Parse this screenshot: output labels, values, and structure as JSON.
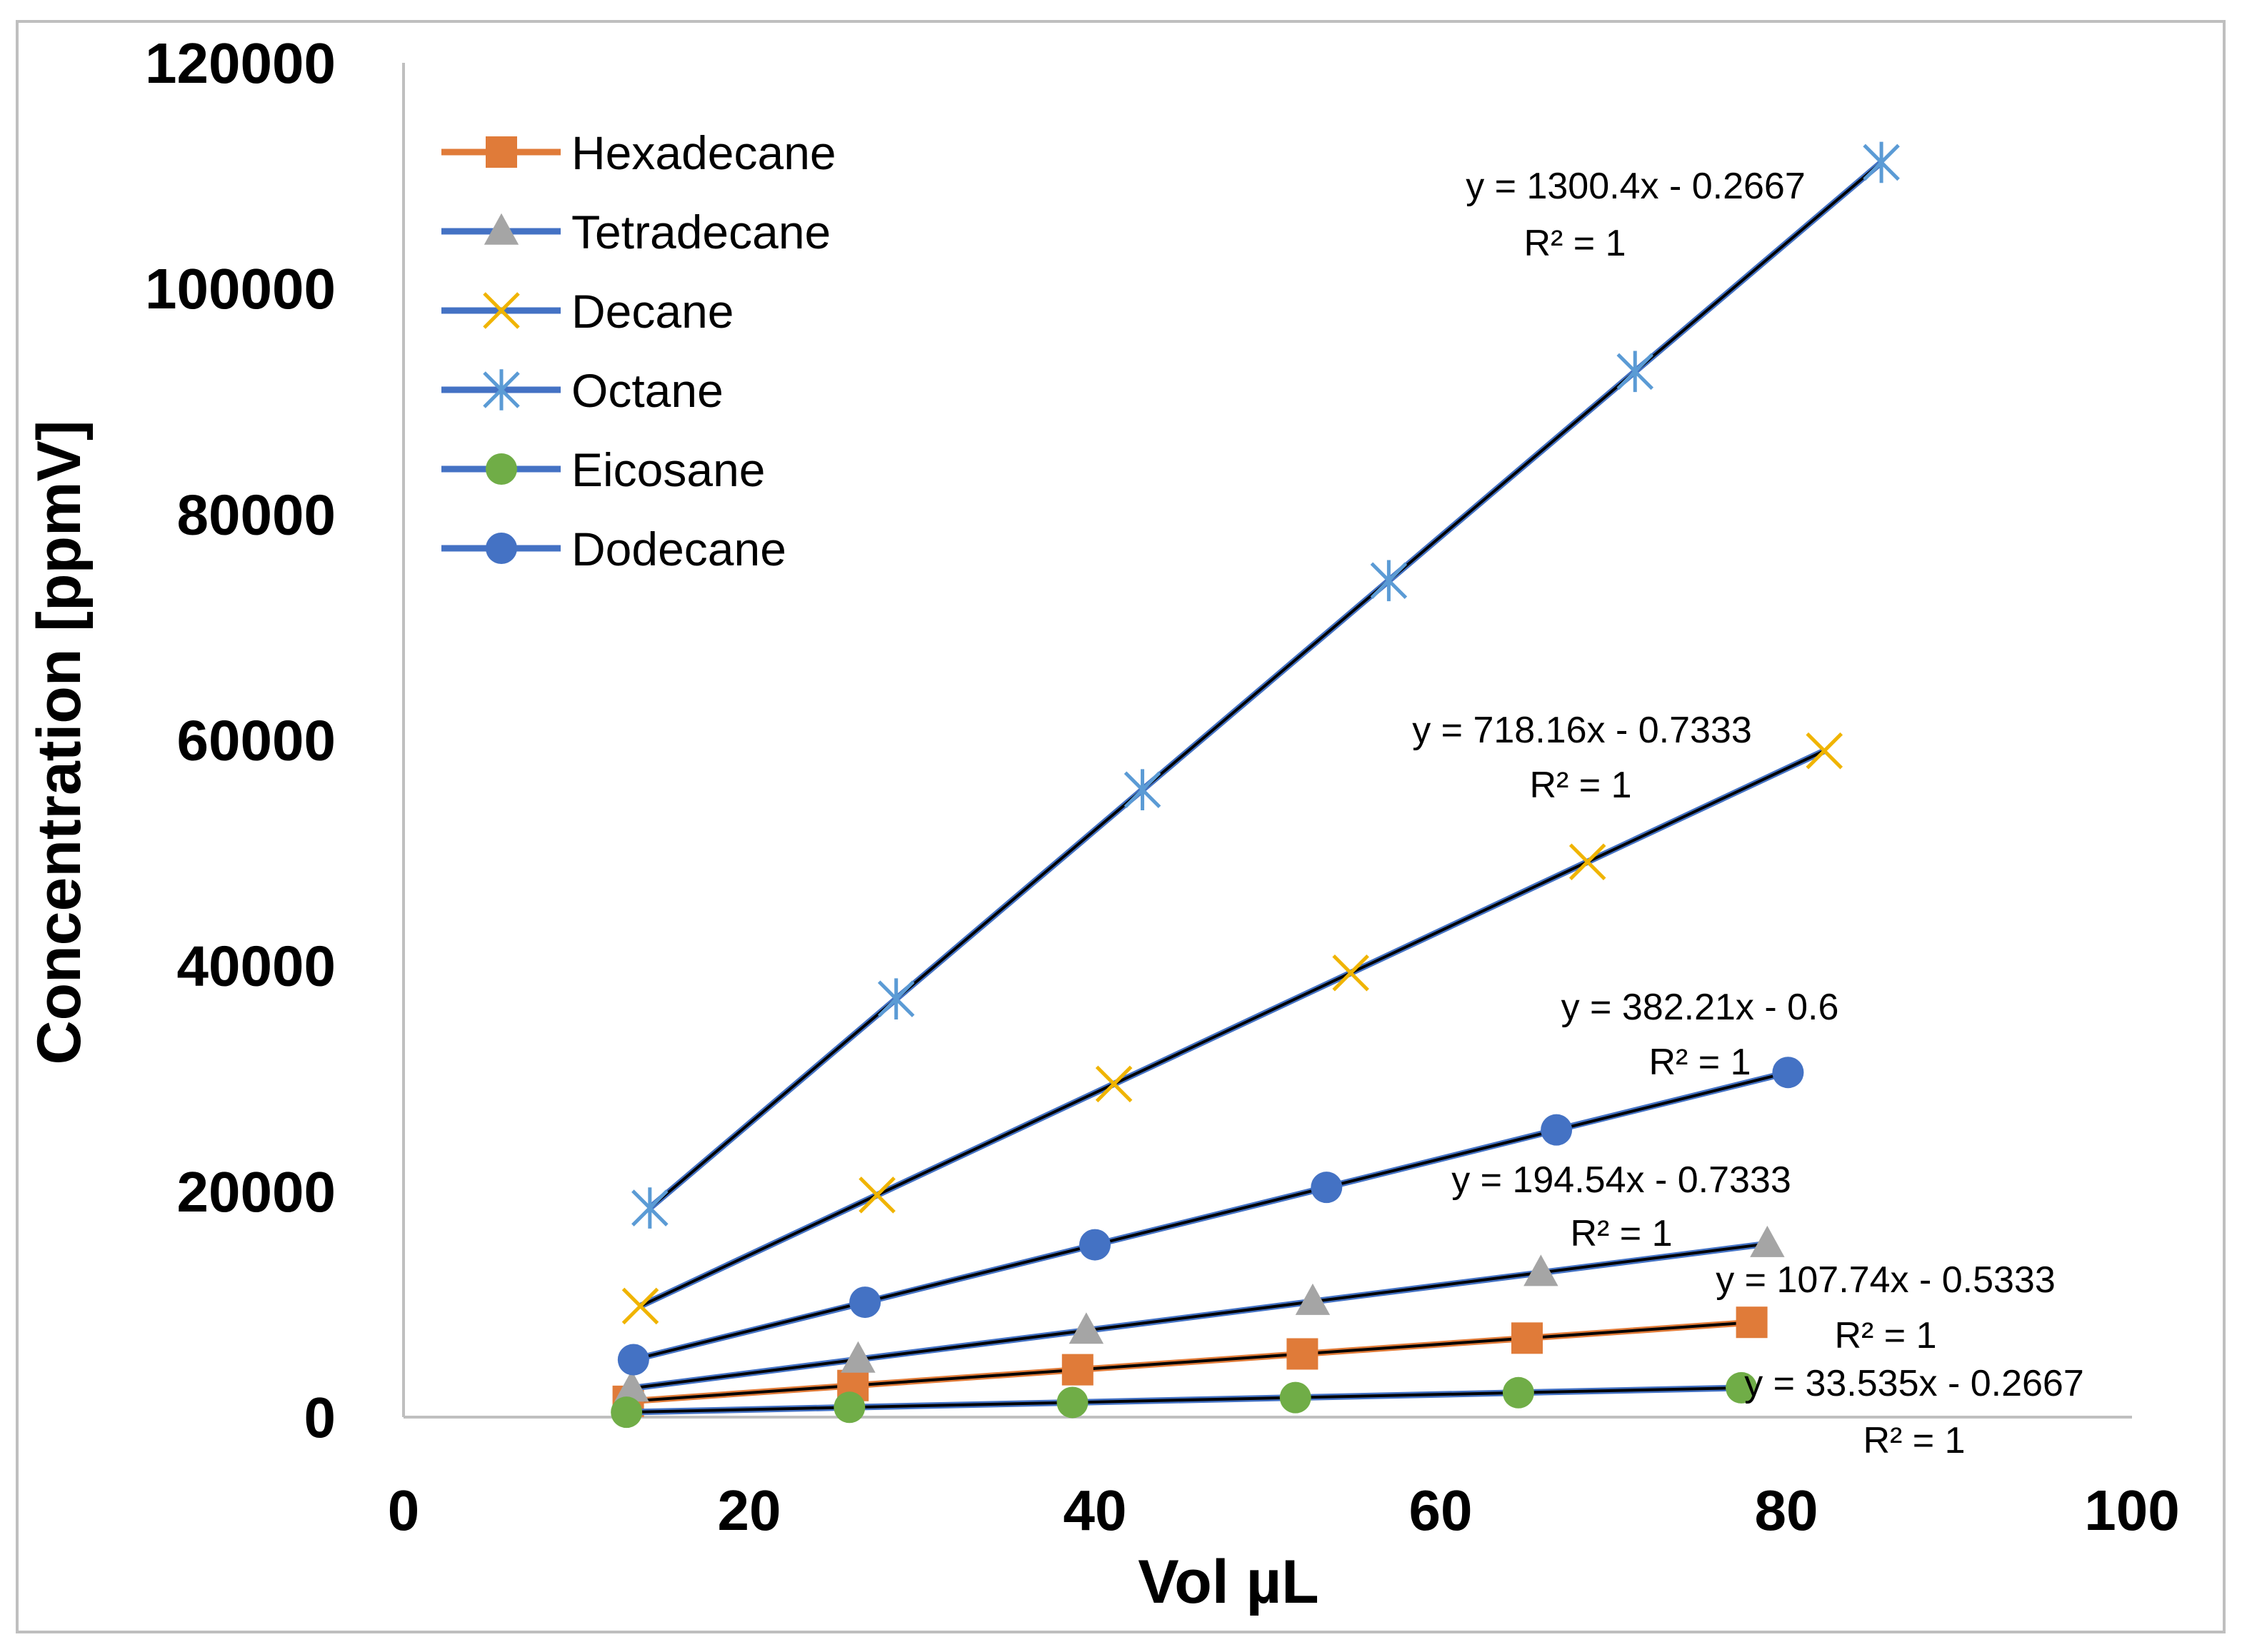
{
  "chart_data": {
    "type": "scatter",
    "title": "",
    "xlabel": "Vol µL",
    "ylabel": "Concentration [ppmV]",
    "xlim": [
      0,
      100
    ],
    "ylim": [
      0,
      120000
    ],
    "xticks": [
      "0",
      "20",
      "40",
      "60",
      "80",
      "100"
    ],
    "yticks": [
      "0",
      "20000",
      "40000",
      "60000",
      "80000",
      "100000",
      "120000"
    ],
    "grid": false,
    "legend_position": "top-left",
    "colors": {
      "Hexadecane": "#E07B39",
      "Tetradecane": "#A5A5A5",
      "Decane": "#F0B400",
      "Octane": "#5B9BD5",
      "Eicosane": "#70AD47",
      "Dodecane": "#4472C4",
      "trend_line": "#000000",
      "series_line": "#4472C4",
      "hexadecane_line": "#E07B39"
    },
    "series": [
      {
        "name": "Hexadecane",
        "marker": "square",
        "x": [
          13,
          26,
          39,
          52,
          65,
          78
        ],
        "y": [
          1400,
          2800,
          4200,
          5600,
          7000,
          8400
        ],
        "equation": "y = 107.74x - 0.5333",
        "r2": "R² = 1"
      },
      {
        "name": "Tetradecane",
        "marker": "triangle",
        "x": [
          13.2,
          26.3,
          39.5,
          52.6,
          65.8,
          78.9
        ],
        "y": [
          2560,
          5120,
          7680,
          10240,
          12800,
          15360
        ],
        "equation": "y = 194.54x - 0.7333",
        "r2": "R² = 1"
      },
      {
        "name": "Decane",
        "marker": "x",
        "x": [
          13.7,
          27.4,
          41.1,
          54.8,
          68.5,
          82.2
        ],
        "y": [
          9840,
          19680,
          29520,
          39360,
          49200,
          59040
        ],
        "equation": "y = 718.16x - 0.7333",
        "r2": "R² = 1"
      },
      {
        "name": "Octane",
        "marker": "asterisk",
        "x": [
          14.25,
          28.5,
          42.75,
          57,
          71.25,
          85.5
        ],
        "y": [
          18530,
          37060,
          55590,
          74120,
          92650,
          111180
        ],
        "equation": "y = 1300.4x - 0.2667",
        "r2": "R² = 1"
      },
      {
        "name": "Eicosane",
        "marker": "circle",
        "x": [
          12.9,
          25.8,
          38.7,
          51.6,
          64.5,
          77.4
        ],
        "y": [
          433,
          866,
          1299,
          1732,
          2165,
          2598
        ],
        "equation": "y = 33.535x - 0.2667",
        "r2": "R² = 1"
      },
      {
        "name": "Dodecane",
        "marker": "circle",
        "x": [
          13.3,
          26.7,
          40,
          53.4,
          66.7,
          80.1
        ],
        "y": [
          5090,
          10180,
          15270,
          20360,
          25450,
          30540
        ],
        "equation": "y = 382.21x - 0.6",
        "r2": "R² = 1"
      }
    ]
  }
}
